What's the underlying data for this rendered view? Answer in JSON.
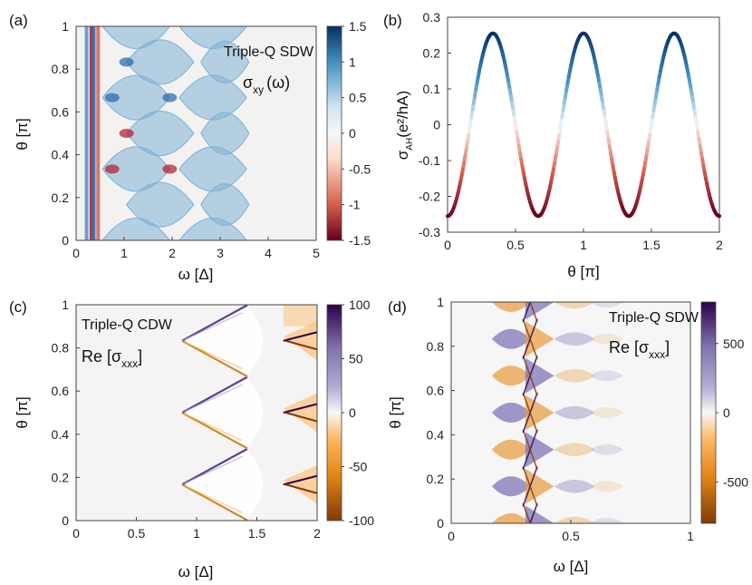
{
  "chart_data": [
    {
      "id": "a",
      "type": "heatmap",
      "panel_label": "(a)",
      "xlabel": "ω [Δ]",
      "ylabel": "θ [π]",
      "xlim": [
        0,
        5
      ],
      "ylim": [
        0,
        1
      ],
      "xticks": [
        "0",
        "1",
        "2",
        "3",
        "4",
        "5"
      ],
      "yticks": [
        "0",
        "0.2",
        "0.4",
        "0.6",
        "0.8",
        "1"
      ],
      "annotations": [
        "Triple-Q SDW",
        "σ",
        "xy",
        "(ω)"
      ],
      "colorbar": {
        "ticks": [
          "1.5",
          "1",
          "0.5",
          "0",
          "-0.5",
          "-1",
          "-1.5"
        ],
        "range": [
          -1.5,
          1.5
        ],
        "colormap": [
          "#67001f",
          "#d6604d",
          "#fddbc7",
          "#f7f7f7",
          "#d1e5f0",
          "#4393c3",
          "#053061"
        ]
      }
    },
    {
      "id": "b",
      "type": "line",
      "panel_label": "(b)",
      "xlabel": "θ [π]",
      "ylabel": "σ",
      "ylabel_sub": "AH",
      "ylabel_rest": "(e²/hA)",
      "xlim": [
        0,
        2
      ],
      "ylim": [
        -0.3,
        0.3
      ],
      "xticks": [
        "0",
        "0.5",
        "1",
        "1.5",
        "2"
      ],
      "yticks": [
        "0.3",
        "0.2",
        "0.1",
        "0",
        "-0.1",
        "-0.2",
        "-0.3"
      ],
      "series": [
        {
          "name": "σ_AH",
          "function": "-0.255*cos(3πθ)",
          "x_range": [
            0,
            2
          ]
        }
      ],
      "maxima_at": [
        0.333,
        1.0,
        1.667
      ],
      "minima_at": [
        0,
        0.667,
        1.333,
        2.0
      ],
      "amplitude": 0.255
    },
    {
      "id": "c",
      "type": "heatmap",
      "panel_label": "(c)",
      "xlabel": "ω [Δ]",
      "ylabel": "θ [π]",
      "xlim": [
        0,
        2
      ],
      "ylim": [
        0,
        1
      ],
      "xticks": [
        "0",
        "0.5",
        "1",
        "1.5",
        "2"
      ],
      "yticks": [
        "0",
        "0.2",
        "0.4",
        "0.6",
        "0.8",
        "1"
      ],
      "annotations": [
        "Triple-Q CDW",
        "Re [σ",
        "xxx",
        "]"
      ],
      "colorbar": {
        "ticks": [
          "100",
          "50",
          "0",
          "-50",
          "-100"
        ],
        "range": [
          -100,
          100
        ],
        "colormap": [
          "#7f3b08",
          "#e08214",
          "#fdb863",
          "#f7f7f7",
          "#b2abd2",
          "#8073ac",
          "#2d004b"
        ]
      }
    },
    {
      "id": "d",
      "type": "heatmap",
      "panel_label": "(d)",
      "xlabel": "ω [Δ]",
      "ylabel": "θ [π]",
      "xlim": [
        0,
        1
      ],
      "ylim": [
        0,
        1
      ],
      "xticks": [
        "0",
        "0.5",
        "1"
      ],
      "yticks": [
        "0",
        "0.2",
        "0.4",
        "0.6",
        "0.8",
        "1"
      ],
      "annotations": [
        "Triple-Q SDW",
        "Re [σ",
        "xxx",
        "]"
      ],
      "colorbar": {
        "ticks": [
          "500",
          "0",
          "-500"
        ],
        "range": [
          -800,
          800
        ],
        "colormap": [
          "#7f3b08",
          "#e08214",
          "#fdb863",
          "#f7f7f7",
          "#b2abd2",
          "#8073ac",
          "#2d004b"
        ]
      }
    }
  ]
}
